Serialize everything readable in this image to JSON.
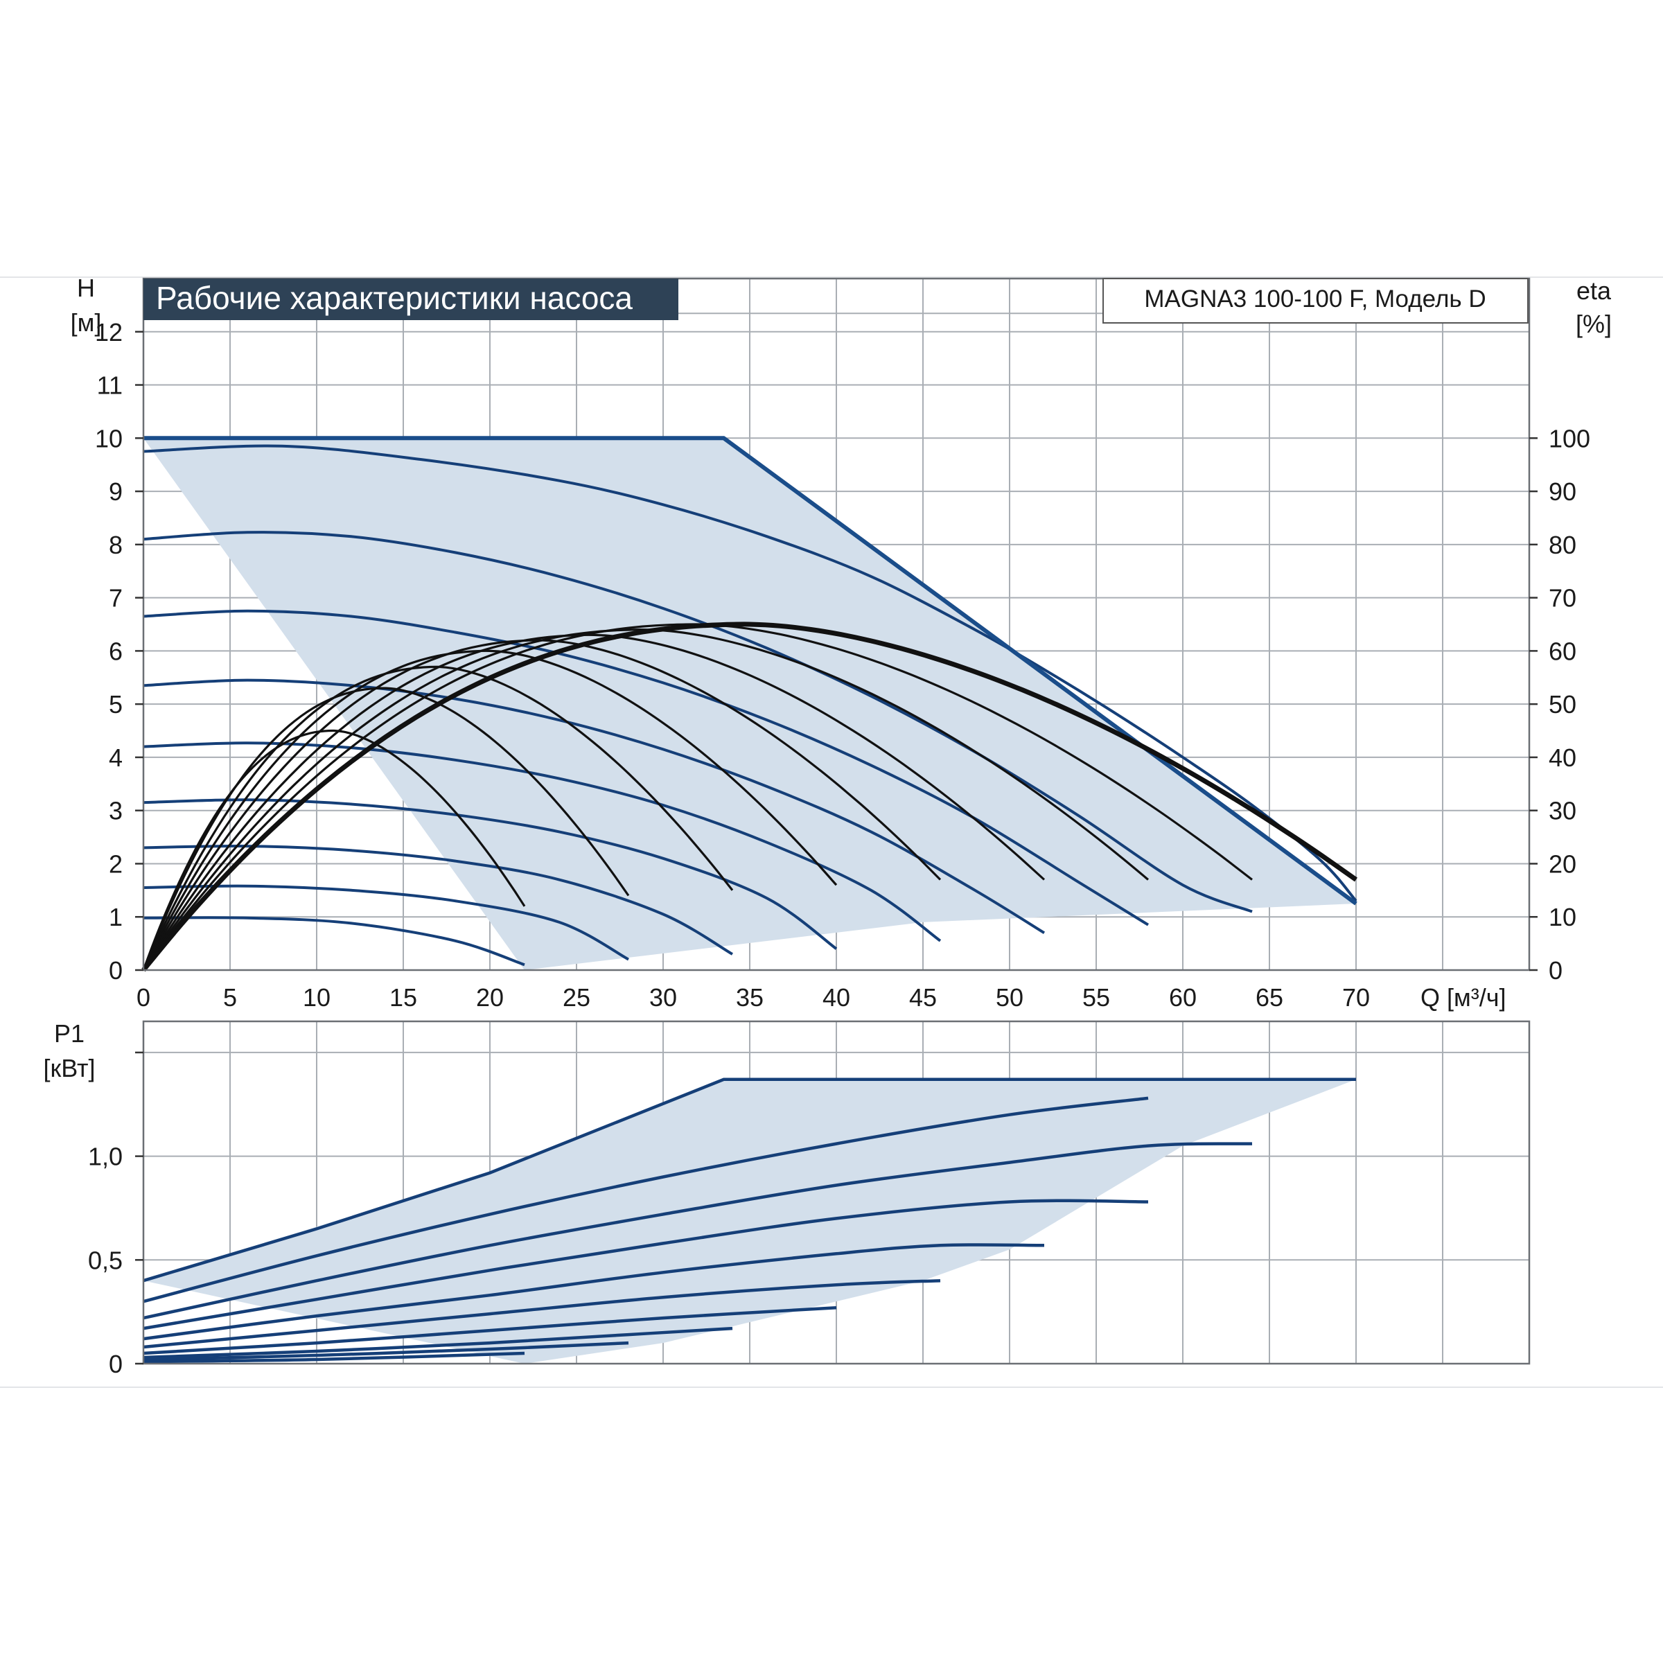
{
  "title": "Рабочие характеристики насоса",
  "model": "MAGNA3 100-100 F, Модель D",
  "colors": {
    "envelope_fill": "#d3dfeb",
    "head_curves": "#153f78",
    "efficiency_curves": "#111111",
    "title_bg": "#2e4256",
    "title_text": "#ffffff"
  },
  "head_axis": {
    "label": "H",
    "unit": "[м]",
    "ticks": [
      "0",
      "1",
      "2",
      "3",
      "4",
      "5",
      "6",
      "7",
      "8",
      "9",
      "10",
      "11",
      "12"
    ],
    "ylim": [
      0,
      13
    ]
  },
  "eff_axis": {
    "label": "eta",
    "unit": "[%]",
    "ticks": [
      "0",
      "10",
      "20",
      "30",
      "40",
      "50",
      "60",
      "70",
      "80",
      "90",
      "100"
    ],
    "ylim": [
      0,
      130
    ]
  },
  "q_axis": {
    "label": "Q [м³/ч]",
    "ticks": [
      "0",
      "5",
      "10",
      "15",
      "20",
      "25",
      "30",
      "35",
      "40",
      "45",
      "50",
      "55",
      "60",
      "65",
      "70"
    ],
    "xlim": [
      0,
      80
    ]
  },
  "p1_axis": {
    "label": "P1",
    "unit": "[кВт]",
    "ticks": [
      "0",
      "0,5",
      "1,0"
    ],
    "tick_values": [
      0,
      0.5,
      1.0
    ],
    "ylim": [
      0,
      1.65
    ]
  },
  "chart_data": [
    {
      "type": "line",
      "name": "head",
      "xlim": [
        0,
        80
      ],
      "ylim": [
        0,
        13
      ],
      "grid": true,
      "envelope": [
        [
          0,
          10
        ],
        [
          33.5,
          10
        ],
        [
          70,
          1.25
        ],
        [
          45,
          0.9
        ],
        [
          22,
          0
        ]
      ],
      "series": [
        {
          "x": [
            0,
            8,
            16,
            24,
            30,
            36,
            42,
            48,
            52,
            56,
            60,
            64,
            68,
            70
          ],
          "y": [
            9.75,
            9.85,
            9.6,
            9.2,
            8.75,
            8.15,
            7.4,
            6.4,
            5.65,
            4.85,
            4.0,
            3.1,
            2.05,
            1.3
          ]
        },
        {
          "x": [
            0,
            6,
            12,
            18,
            24,
            30,
            36,
            42,
            48,
            54,
            60,
            64
          ],
          "y": [
            8.1,
            8.23,
            8.15,
            7.85,
            7.4,
            6.8,
            6.05,
            5.15,
            4.1,
            2.9,
            1.6,
            1.1
          ]
        },
        {
          "x": [
            0,
            6,
            12,
            18,
            24,
            30,
            36,
            42,
            48,
            54,
            58
          ],
          "y": [
            6.65,
            6.75,
            6.65,
            6.35,
            5.95,
            5.4,
            4.7,
            3.85,
            2.85,
            1.65,
            0.85
          ]
        },
        {
          "x": [
            0,
            6,
            12,
            18,
            24,
            30,
            36,
            42,
            48,
            52
          ],
          "y": [
            5.35,
            5.45,
            5.35,
            5.1,
            4.7,
            4.15,
            3.45,
            2.6,
            1.5,
            0.7
          ]
        },
        {
          "x": [
            0,
            6,
            12,
            18,
            24,
            30,
            36,
            42,
            46
          ],
          "y": [
            4.2,
            4.27,
            4.18,
            3.95,
            3.6,
            3.1,
            2.4,
            1.5,
            0.55
          ]
        },
        {
          "x": [
            0,
            6,
            12,
            18,
            24,
            30,
            36,
            40
          ],
          "y": [
            3.15,
            3.2,
            3.12,
            2.92,
            2.6,
            2.1,
            1.35,
            0.4
          ]
        },
        {
          "x": [
            0,
            6,
            12,
            18,
            24,
            30,
            34
          ],
          "y": [
            2.3,
            2.33,
            2.25,
            2.05,
            1.7,
            1.05,
            0.3
          ]
        },
        {
          "x": [
            0,
            6,
            12,
            18,
            24,
            28
          ],
          "y": [
            1.55,
            1.58,
            1.5,
            1.3,
            0.9,
            0.2
          ]
        },
        {
          "x": [
            0,
            6,
            12,
            18,
            22
          ],
          "y": [
            0.98,
            0.98,
            0.88,
            0.55,
            0.1
          ]
        }
      ]
    },
    {
      "type": "line",
      "name": "efficiency",
      "unit": "%",
      "xlim": [
        0,
        80
      ],
      "ylim": [
        0,
        130
      ],
      "series": [
        {
          "peak_q": 35,
          "peak_eta": 65,
          "end_q": 70,
          "end_eta": 17
        },
        {
          "peak_q": 32,
          "peak_eta": 65,
          "end_q": 64,
          "end_eta": 17
        },
        {
          "peak_q": 29,
          "peak_eta": 64,
          "end_q": 58,
          "end_eta": 17
        },
        {
          "peak_q": 26,
          "peak_eta": 63,
          "end_q": 52,
          "end_eta": 17
        },
        {
          "peak_q": 23,
          "peak_eta": 62,
          "end_q": 46,
          "end_eta": 17
        },
        {
          "peak_q": 20,
          "peak_eta": 60,
          "end_q": 40,
          "end_eta": 16
        },
        {
          "peak_q": 17,
          "peak_eta": 57,
          "end_q": 34,
          "end_eta": 15
        },
        {
          "peak_q": 14,
          "peak_eta": 53,
          "end_q": 28,
          "end_eta": 14
        },
        {
          "peak_q": 11,
          "peak_eta": 45,
          "end_q": 22,
          "end_eta": 12
        }
      ]
    },
    {
      "type": "line",
      "name": "P1",
      "unit": "кВт",
      "xlim": [
        0,
        80
      ],
      "ylim": [
        0,
        1.65
      ],
      "grid": true,
      "envelope": [
        [
          0,
          0.4
        ],
        [
          20,
          0.92
        ],
        [
          33.5,
          1.37
        ],
        [
          70,
          1.37
        ],
        [
          60,
          1.05
        ],
        [
          50,
          0.55
        ],
        [
          45,
          0.4
        ],
        [
          30,
          0.1
        ],
        [
          22,
          0
        ]
      ],
      "series": [
        {
          "x": [
            0,
            10,
            20,
            33.5,
            45,
            52,
            70
          ],
          "y": [
            0.4,
            0.65,
            0.92,
            1.37,
            1.37,
            1.37,
            1.37
          ]
        },
        {
          "x": [
            0,
            10,
            20,
            30,
            40,
            50,
            58
          ],
          "y": [
            0.3,
            0.52,
            0.72,
            0.9,
            1.06,
            1.2,
            1.28
          ]
        },
        {
          "x": [
            0,
            10,
            20,
            30,
            40,
            50,
            58,
            64
          ],
          "y": [
            0.22,
            0.4,
            0.57,
            0.72,
            0.86,
            0.97,
            1.05,
            1.06
          ]
        },
        {
          "x": [
            0,
            10,
            20,
            30,
            40,
            50,
            58
          ],
          "y": [
            0.17,
            0.31,
            0.45,
            0.58,
            0.7,
            0.78,
            0.78
          ]
        },
        {
          "x": [
            0,
            10,
            20,
            30,
            40,
            46,
            52
          ],
          "y": [
            0.12,
            0.23,
            0.33,
            0.44,
            0.53,
            0.57,
            0.57
          ]
        },
        {
          "x": [
            0,
            10,
            20,
            30,
            40,
            46
          ],
          "y": [
            0.08,
            0.16,
            0.24,
            0.32,
            0.38,
            0.4
          ]
        },
        {
          "x": [
            0,
            10,
            20,
            30,
            40
          ],
          "y": [
            0.05,
            0.1,
            0.16,
            0.22,
            0.27
          ]
        },
        {
          "x": [
            0,
            10,
            20,
            28,
            34
          ],
          "y": [
            0.03,
            0.06,
            0.1,
            0.14,
            0.17
          ]
        },
        {
          "x": [
            0,
            10,
            20,
            28
          ],
          "y": [
            0.02,
            0.04,
            0.07,
            0.1
          ]
        },
        {
          "x": [
            0,
            10,
            22
          ],
          "y": [
            0.01,
            0.02,
            0.05
          ]
        }
      ]
    }
  ]
}
